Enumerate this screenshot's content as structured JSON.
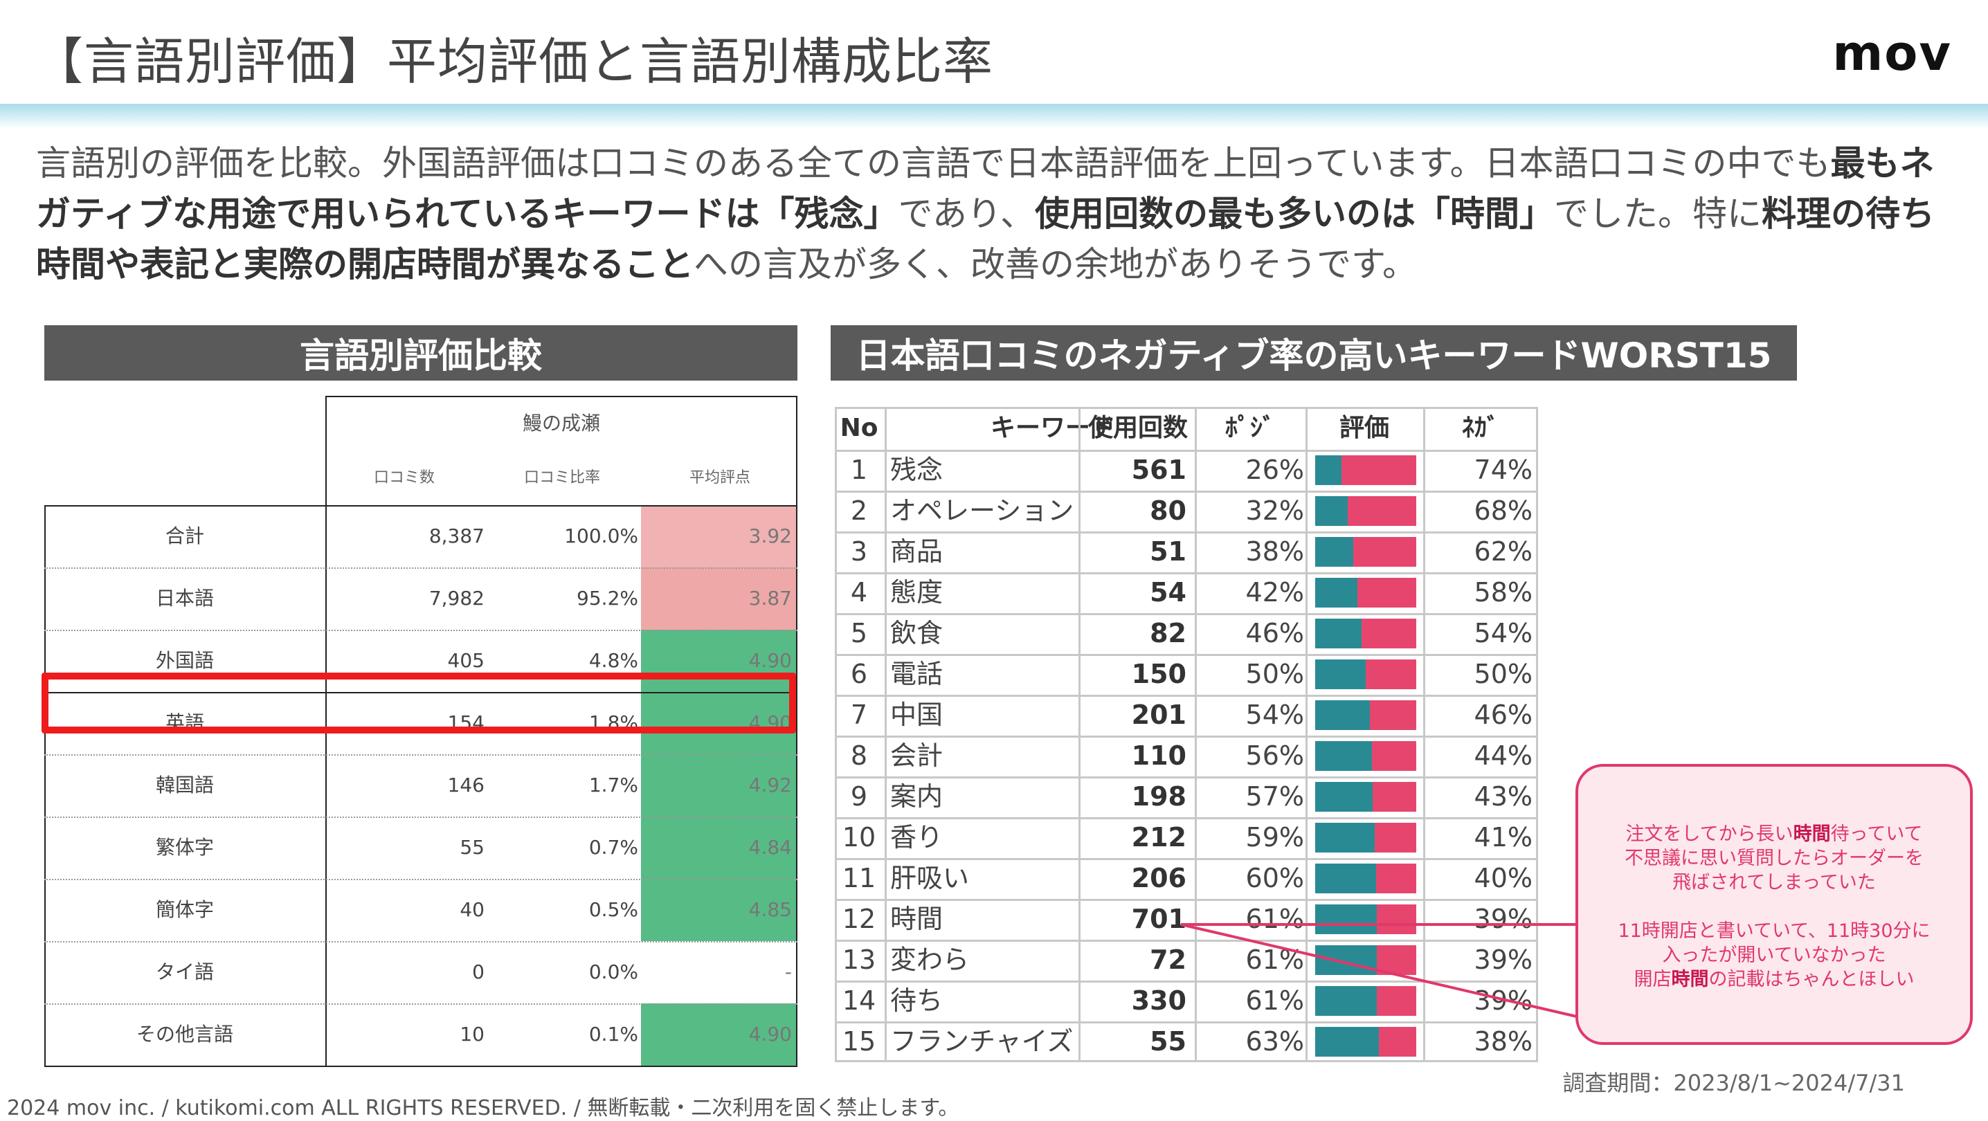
{
  "title": "【言語別評価】平均評価と言語別構成比率",
  "logo": "mov",
  "intro": {
    "p1": "言語別の評価を比較。外国語評価は口コミのある全ての言語で日本語評価を上回っています。日本語口コミの中でも",
    "b1": "最もネガティブな用途で用いられているキーワードは「残念」",
    "p2": "であり、",
    "b2": "使用回数の最も多いのは「時間」",
    "p3": "でした。特に",
    "b3": "料理の待ち時間や表記と実際の開店時間が異なること",
    "p4": "への言及が多く、改善の余地がありそうです。"
  },
  "left_section": {
    "title": "言語別評価比較",
    "group_label": "鰻の成瀬",
    "columns": [
      "口コミ数",
      "口コミ比率",
      "平均評点"
    ],
    "rows": [
      {
        "lang": "合計",
        "count": "8,387",
        "ratio": "100.0%",
        "avg": "3.92"
      },
      {
        "lang": "日本語",
        "count": "7,982",
        "ratio": "95.2%",
        "avg": "3.87"
      },
      {
        "lang": "外国語",
        "count": "405",
        "ratio": "4.8%",
        "avg": "4.90"
      },
      {
        "lang": "英語",
        "count": "154",
        "ratio": "1.8%",
        "avg": "4.90"
      },
      {
        "lang": "韓国語",
        "count": "146",
        "ratio": "1.7%",
        "avg": "4.92"
      },
      {
        "lang": "繁体字",
        "count": "55",
        "ratio": "0.7%",
        "avg": "4.84"
      },
      {
        "lang": "簡体字",
        "count": "40",
        "ratio": "0.5%",
        "avg": "4.85"
      },
      {
        "lang": "タイ語",
        "count": "0",
        "ratio": "0.0%",
        "avg": "-"
      },
      {
        "lang": "その他言語",
        "count": "10",
        "ratio": "0.1%",
        "avg": "4.90"
      }
    ],
    "colors": {
      "low": "#f0b2b2",
      "mid": "#eea8a8",
      "high": "#57bb86"
    }
  },
  "right_section": {
    "title": "日本語口コミのネガティブ率の高いキーワードWORST15",
    "columns": [
      "No",
      "キーワード",
      "使用回数",
      "ﾎﾟｼﾞ",
      "評価",
      "ﾈｶﾞ"
    ],
    "rows": [
      {
        "no": "1",
        "keyword": "残念",
        "uses": "561",
        "pos": "26%",
        "pos_val": 26,
        "neg": "74%"
      },
      {
        "no": "2",
        "keyword": "オペレーション",
        "uses": "80",
        "pos": "32%",
        "pos_val": 32,
        "neg": "68%"
      },
      {
        "no": "3",
        "keyword": "商品",
        "uses": "51",
        "pos": "38%",
        "pos_val": 38,
        "neg": "62%"
      },
      {
        "no": "4",
        "keyword": "態度",
        "uses": "54",
        "pos": "42%",
        "pos_val": 42,
        "neg": "58%"
      },
      {
        "no": "5",
        "keyword": "飲食",
        "uses": "82",
        "pos": "46%",
        "pos_val": 46,
        "neg": "54%"
      },
      {
        "no": "6",
        "keyword": "電話",
        "uses": "150",
        "pos": "50%",
        "pos_val": 50,
        "neg": "50%"
      },
      {
        "no": "7",
        "keyword": "中国",
        "uses": "201",
        "pos": "54%",
        "pos_val": 54,
        "neg": "46%"
      },
      {
        "no": "8",
        "keyword": "会計",
        "uses": "110",
        "pos": "56%",
        "pos_val": 56,
        "neg": "44%"
      },
      {
        "no": "9",
        "keyword": "案内",
        "uses": "198",
        "pos": "57%",
        "pos_val": 57,
        "neg": "43%"
      },
      {
        "no": "10",
        "keyword": "香り",
        "uses": "212",
        "pos": "59%",
        "pos_val": 59,
        "neg": "41%"
      },
      {
        "no": "11",
        "keyword": "肝吸い",
        "uses": "206",
        "pos": "60%",
        "pos_val": 60,
        "neg": "40%"
      },
      {
        "no": "12",
        "keyword": "時間",
        "uses": "701",
        "pos": "61%",
        "pos_val": 61,
        "neg": "39%"
      },
      {
        "no": "13",
        "keyword": "変わら",
        "uses": "72",
        "pos": "61%",
        "pos_val": 61,
        "neg": "39%"
      },
      {
        "no": "14",
        "keyword": "待ち",
        "uses": "330",
        "pos": "61%",
        "pos_val": 61,
        "neg": "39%"
      },
      {
        "no": "15",
        "keyword": "フランチャイズ",
        "uses": "55",
        "pos": "63%",
        "pos_val": 63,
        "neg": "38%"
      }
    ],
    "colors": {
      "pos": "#2a8a94",
      "neg": "#e6466e"
    }
  },
  "callout": {
    "q1a": "注文をしてから長い",
    "q1b": "時間",
    "q1c": "待っていて",
    "q1d": "不思議に思い質問したらオーダーを",
    "q1e": "飛ばされてしまっていた",
    "q2a": "11時開店と書いていて、11時30分に",
    "q2b": "入ったが開いていなかった",
    "q2c": "開店",
    "q2d": "時間",
    "q2e": "の記載はちゃんとほしい"
  },
  "period": "調査期間：2023/8/1~2024/7/31",
  "copyright": "2024 mov inc. / kutikomi.com ALL RIGHTS RESERVED. / 無断転載・二次利用を固く禁止します。"
}
